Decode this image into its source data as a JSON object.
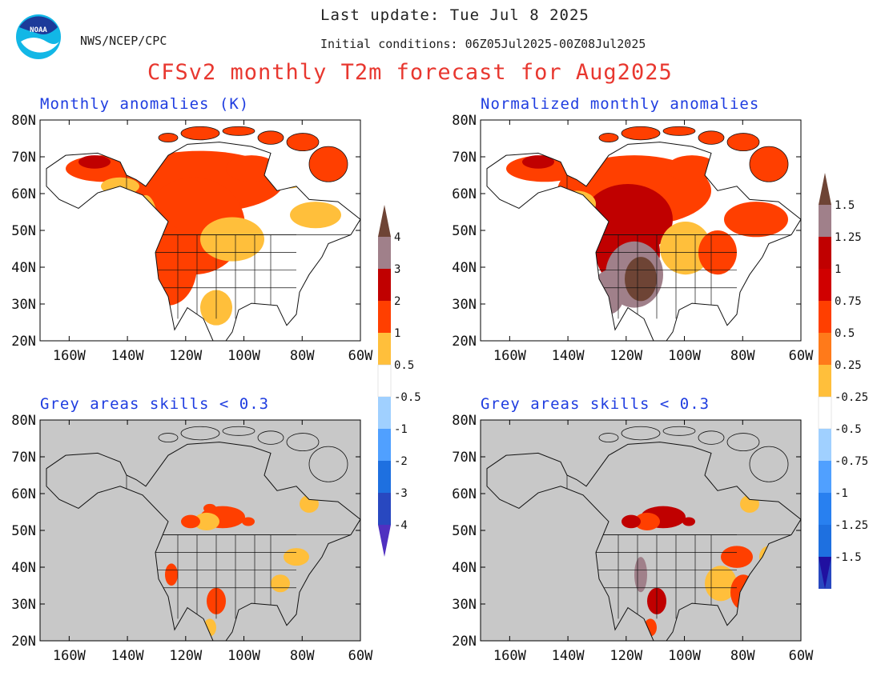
{
  "header": {
    "agency": "NWS/NCEP/CPC",
    "last_update": "Last update: Tue Jul 8 2025",
    "initial_conditions": "Initial conditions: 06Z05Jul2025-00Z08Jul2025",
    "title": "CFSv2 monthly T2m forecast for Aug2025"
  },
  "logo": {
    "text": "NOAA",
    "icon": "noaa-logo-icon"
  },
  "axes": {
    "lat_labels": [
      "80N",
      "70N",
      "60N",
      "50N",
      "40N",
      "30N",
      "20N"
    ],
    "lon_labels": [
      "160W",
      "140W",
      "120W",
      "100W",
      "80W",
      "60W"
    ]
  },
  "panels": [
    {
      "id": "tl",
      "title": "Monthly anomalies (K)",
      "grey_background": false
    },
    {
      "id": "tr",
      "title": "Normalized monthly anomalies",
      "grey_background": false
    },
    {
      "id": "bl",
      "title": "Grey areas skills < 0.3",
      "grey_background": true
    },
    {
      "id": "br",
      "title": "Grey areas skills < 0.3",
      "grey_background": true
    }
  ],
  "colorbars": [
    {
      "id": "left",
      "labels": [
        "4",
        "3",
        "2",
        "1",
        "0.5",
        "-0.5",
        "-1",
        "-2",
        "-3",
        "-4"
      ]
    },
    {
      "id": "right",
      "labels": [
        "1.5",
        "1.25",
        "1",
        "0.75",
        "0.5",
        "0.25",
        "-0.25",
        "-0.5",
        "-0.75",
        "-1",
        "-1.25",
        "-1.5"
      ]
    }
  ],
  "colors": {
    "warm": [
      "#ffbf3b",
      "#ff3f00",
      "#c00000",
      "#a0808a",
      "#6e4435"
    ],
    "cool": [
      "#a0d0ff",
      "#50a0ff",
      "#1e70e0",
      "#2848c0",
      "#5030c0"
    ],
    "grey": "#c8c8c8"
  }
}
